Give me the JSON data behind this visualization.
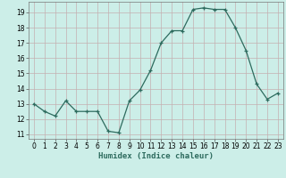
{
  "x": [
    0,
    1,
    2,
    3,
    4,
    5,
    6,
    7,
    8,
    9,
    10,
    11,
    12,
    13,
    14,
    15,
    16,
    17,
    18,
    19,
    20,
    21,
    22,
    23
  ],
  "y": [
    13,
    12.5,
    12.2,
    13.2,
    12.5,
    12.5,
    12.5,
    11.2,
    11.1,
    13.2,
    13.9,
    15.2,
    17.0,
    17.8,
    17.8,
    19.2,
    19.3,
    19.2,
    19.2,
    18.0,
    16.5,
    14.3,
    13.3,
    13.7
  ],
  "line_color": "#2d6b5e",
  "marker": "+",
  "marker_size": 3,
  "bg_color": "#cceee8",
  "grid_color": "#c4b0b0",
  "xlabel": "Humidex (Indice chaleur)",
  "xlim": [
    -0.5,
    23.5
  ],
  "ylim": [
    10.7,
    19.7
  ],
  "yticks": [
    11,
    12,
    13,
    14,
    15,
    16,
    17,
    18,
    19
  ],
  "xticks": [
    0,
    1,
    2,
    3,
    4,
    5,
    6,
    7,
    8,
    9,
    10,
    11,
    12,
    13,
    14,
    15,
    16,
    17,
    18,
    19,
    20,
    21,
    22,
    23
  ],
  "tick_fontsize": 5.5,
  "xlabel_fontsize": 6.5,
  "linewidth": 0.9
}
